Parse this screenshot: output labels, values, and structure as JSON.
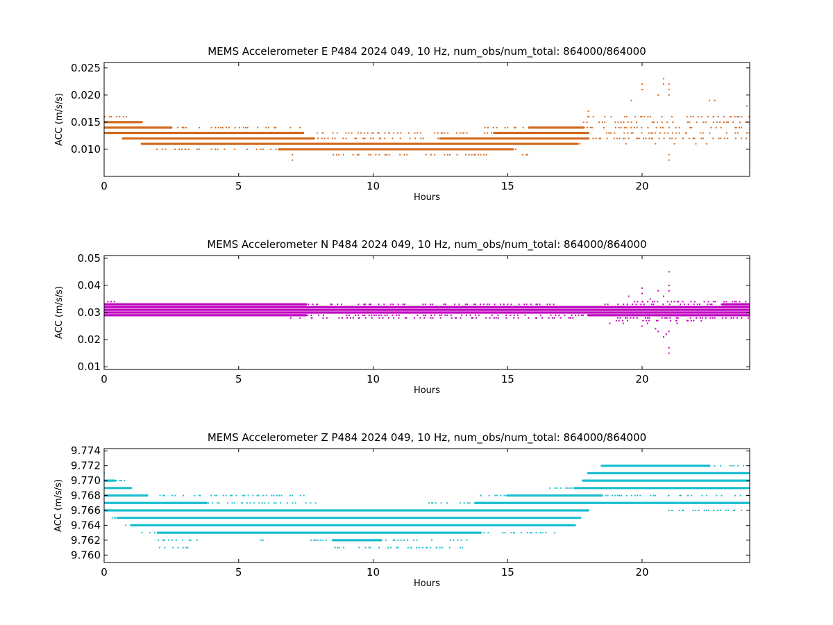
{
  "chart_data": [
    {
      "type": "scatter",
      "title": "MEMS Accelerometer E P484 2024 049, 10 Hz, num_obs/num_total: 864000/864000",
      "xlabel": "Hours",
      "ylabel": "ACC (m/s/s)",
      "xlim": [
        0,
        24
      ],
      "ylim": [
        0.005,
        0.026
      ],
      "xticks": [
        0,
        5,
        10,
        15,
        20
      ],
      "xtick_labels": [
        "0",
        "5",
        "10",
        "15",
        "20"
      ],
      "yticks": [
        0.01,
        0.015,
        0.02,
        0.025
      ],
      "ytick_labels": [
        "0.010",
        "0.015",
        "0.020",
        "0.025"
      ],
      "color": "#d2691e",
      "grid": false,
      "levels": [
        {
          "y": 0.016,
          "dense": [],
          "sparse": [
            [
              0.0,
              0.9
            ],
            [
              17.8,
              24.0
            ]
          ]
        },
        {
          "y": 0.015,
          "dense": [
            [
              0.0,
              1.4
            ]
          ],
          "sparse": [
            [
              15.7,
              15.8
            ],
            [
              17.8,
              24.0
            ]
          ]
        },
        {
          "y": 0.014,
          "dense": [
            [
              0.0,
              2.5
            ],
            [
              15.8,
              17.8
            ]
          ],
          "sparse": [
            [
              2.5,
              7.5
            ],
            [
              14.0,
              15.8
            ],
            [
              17.8,
              24.0
            ]
          ]
        },
        {
          "y": 0.013,
          "dense": [
            [
              0.0,
              7.4
            ],
            [
              14.5,
              18.0
            ]
          ],
          "sparse": [
            [
              7.4,
              14.5
            ],
            [
              18.0,
              24.0
            ]
          ]
        },
        {
          "y": 0.012,
          "dense": [
            [
              0.7,
              7.8
            ],
            [
              12.5,
              18.0
            ]
          ],
          "sparse": [
            [
              7.8,
              12.5
            ],
            [
              18.0,
              24.0
            ]
          ]
        },
        {
          "y": 0.011,
          "dense": [
            [
              1.4,
              17.6
            ]
          ],
          "sparse": [
            [
              17.6,
              17.7
            ]
          ]
        },
        {
          "y": 0.01,
          "dense": [
            [
              6.5,
              15.2
            ]
          ],
          "sparse": [
            [
              1.8,
              6.5
            ],
            [
              15.2,
              15.5
            ]
          ]
        },
        {
          "y": 0.009,
          "dense": [],
          "sparse": [
            [
              8.5,
              14.3
            ],
            [
              15.5,
              15.8
            ]
          ]
        }
      ],
      "outliers": [
        [
          7.0,
          0.008
        ],
        [
          7.0,
          0.009
        ],
        [
          20.0,
          0.022
        ],
        [
          20.0,
          0.021
        ],
        [
          20.8,
          0.023
        ],
        [
          20.8,
          0.022
        ],
        [
          21.0,
          0.022
        ],
        [
          21.0,
          0.021
        ],
        [
          21.0,
          0.02
        ],
        [
          20.6,
          0.02
        ],
        [
          19.6,
          0.019
        ],
        [
          22.5,
          0.019
        ],
        [
          22.7,
          0.019
        ],
        [
          21.0,
          0.008
        ],
        [
          21.0,
          0.009
        ],
        [
          20.5,
          0.011
        ],
        [
          21.2,
          0.011
        ],
        [
          22.4,
          0.011
        ],
        [
          22.0,
          0.011
        ],
        [
          19.8,
          0.012
        ],
        [
          18.7,
          0.012
        ],
        [
          19.4,
          0.011
        ],
        [
          23.9,
          0.018
        ],
        [
          18.0,
          0.017
        ],
        [
          0.7,
          0.012
        ]
      ]
    },
    {
      "type": "scatter",
      "title": "MEMS Accelerometer N P484 2024 049, 10 Hz, num_obs/num_total: 864000/864000",
      "xlabel": "Hours",
      "ylabel": "ACC (m/s/s)",
      "xlim": [
        0,
        24
      ],
      "ylim": [
        0.009,
        0.051
      ],
      "xticks": [
        0,
        5,
        10,
        15,
        20
      ],
      "xtick_labels": [
        "0",
        "5",
        "10",
        "15",
        "20"
      ],
      "yticks": [
        0.01,
        0.02,
        0.03,
        0.04,
        0.05
      ],
      "ytick_labels": [
        "0.01",
        "0.02",
        "0.03",
        "0.04",
        "0.05"
      ],
      "color": "#bf00bf",
      "grid": false,
      "levels": [
        {
          "y": 0.034,
          "dense": [],
          "sparse": [
            [
              0.1,
              0.5
            ],
            [
              19.5,
              24.0
            ]
          ]
        },
        {
          "y": 0.033,
          "dense": [
            [
              0.0,
              7.5
            ],
            [
              23.0,
              24.0
            ]
          ],
          "sparse": [
            [
              1.0,
              17.0
            ],
            [
              18.5,
              24.0
            ]
          ]
        },
        {
          "y": 0.032,
          "dense": [
            [
              0.0,
              24.0
            ]
          ],
          "sparse": []
        },
        {
          "y": 0.031,
          "dense": [
            [
              0.0,
              24.0
            ]
          ],
          "sparse": []
        },
        {
          "y": 0.03,
          "dense": [
            [
              0.0,
              24.0
            ]
          ],
          "sparse": []
        },
        {
          "y": 0.029,
          "dense": [
            [
              0.0,
              7.5
            ],
            [
              18.0,
              24.0
            ]
          ],
          "sparse": [
            [
              1.5,
              24.0
            ]
          ]
        },
        {
          "y": 0.028,
          "dense": [],
          "sparse": [
            [
              6.8,
              17.5
            ],
            [
              19.0,
              24.0
            ]
          ]
        },
        {
          "y": 0.027,
          "dense": [],
          "sparse": [
            [
              19.0,
              22.0
            ]
          ]
        }
      ],
      "outliers": [
        [
          21.0,
          0.045
        ],
        [
          21.0,
          0.04
        ],
        [
          21.0,
          0.038
        ],
        [
          20.6,
          0.038
        ],
        [
          20.0,
          0.039
        ],
        [
          20.0,
          0.037
        ],
        [
          20.8,
          0.036
        ],
        [
          19.5,
          0.036
        ],
        [
          20.3,
          0.035
        ],
        [
          21.0,
          0.015
        ],
        [
          21.0,
          0.017
        ],
        [
          20.9,
          0.022
        ],
        [
          21.0,
          0.023
        ],
        [
          20.5,
          0.024
        ],
        [
          20.0,
          0.025
        ],
        [
          19.3,
          0.026
        ],
        [
          18.8,
          0.026
        ],
        [
          20.2,
          0.026
        ],
        [
          21.3,
          0.026
        ],
        [
          22.2,
          0.027
        ],
        [
          20.8,
          0.021
        ],
        [
          20.6,
          0.023
        ]
      ]
    },
    {
      "type": "scatter",
      "title": "MEMS Accelerometer Z P484 2024 049, 10 Hz, num_obs/num_total: 864000/864000",
      "xlabel": "Hours",
      "ylabel": "ACC (m/s/s)",
      "xlim": [
        0,
        24
      ],
      "ylim": [
        9.759,
        9.7743
      ],
      "xticks": [
        0,
        5,
        10,
        15,
        20
      ],
      "xtick_labels": [
        "0",
        "5",
        "10",
        "15",
        "20"
      ],
      "yticks": [
        9.76,
        9.762,
        9.764,
        9.766,
        9.768,
        9.77,
        9.772,
        9.774
      ],
      "ytick_labels": [
        "9.760",
        "9.762",
        "9.764",
        "9.766",
        "9.768",
        "9.770",
        "9.772",
        "9.774"
      ],
      "color": "#17becf",
      "grid": false,
      "levels": [
        {
          "y": 9.772,
          "dense": [
            [
              18.5,
              22.5
            ]
          ],
          "sparse": [
            [
              22.5,
              24.0
            ]
          ]
        },
        {
          "y": 9.771,
          "dense": [
            [
              18.0,
              24.0
            ]
          ],
          "sparse": [
            [
              0.0,
              0.3
            ]
          ]
        },
        {
          "y": 9.77,
          "dense": [
            [
              0.0,
              0.4
            ],
            [
              17.8,
              24.0
            ]
          ],
          "sparse": [
            [
              0.4,
              0.8
            ]
          ]
        },
        {
          "y": 9.769,
          "dense": [
            [
              0.0,
              1.0
            ],
            [
              17.5,
              24.0
            ]
          ],
          "sparse": [
            [
              16.5,
              17.5
            ]
          ]
        },
        {
          "y": 9.768,
          "dense": [
            [
              0.0,
              1.6
            ],
            [
              15.0,
              18.5
            ]
          ],
          "sparse": [
            [
              2.0,
              7.5
            ],
            [
              13.8,
              15.0
            ],
            [
              18.5,
              24.0
            ]
          ]
        },
        {
          "y": 9.767,
          "dense": [
            [
              0.0,
              3.8
            ],
            [
              13.8,
              24.0
            ]
          ],
          "sparse": [
            [
              3.5,
              8.0
            ],
            [
              12.0,
              14.0
            ]
          ]
        },
        {
          "y": 9.766,
          "dense": [
            [
              0.0,
              18.0
            ]
          ],
          "sparse": [
            [
              18.0,
              18.3
            ],
            [
              21.0,
              24.0
            ]
          ]
        },
        {
          "y": 9.765,
          "dense": [
            [
              0.5,
              17.7
            ]
          ],
          "sparse": [
            [
              0.3,
              0.5
            ]
          ]
        },
        {
          "y": 9.764,
          "dense": [
            [
              1.0,
              17.5
            ]
          ],
          "sparse": []
        },
        {
          "y": 9.763,
          "dense": [
            [
              2.0,
              14.0
            ]
          ],
          "sparse": [
            [
              1.3,
              2.0
            ],
            [
              14.0,
              16.8
            ]
          ]
        },
        {
          "y": 9.762,
          "dense": [
            [
              8.5,
              10.3
            ]
          ],
          "sparse": [
            [
              1.6,
              3.5
            ],
            [
              5.8,
              6.0
            ],
            [
              7.5,
              13.5
            ]
          ]
        },
        {
          "y": 9.761,
          "dense": [],
          "sparse": [
            [
              2.0,
              3.2
            ],
            [
              8.5,
              13.5
            ]
          ]
        }
      ],
      "outliers": [
        [
          21.0,
          9.766
        ],
        [
          22.8,
          9.766
        ],
        [
          23.4,
          9.766
        ],
        [
          0.8,
          9.764
        ],
        [
          0.4,
          9.765
        ],
        [
          2.2,
          9.768
        ],
        [
          2.8,
          9.767
        ],
        [
          10.8,
          9.762
        ],
        [
          12.0,
          9.761
        ]
      ]
    }
  ]
}
